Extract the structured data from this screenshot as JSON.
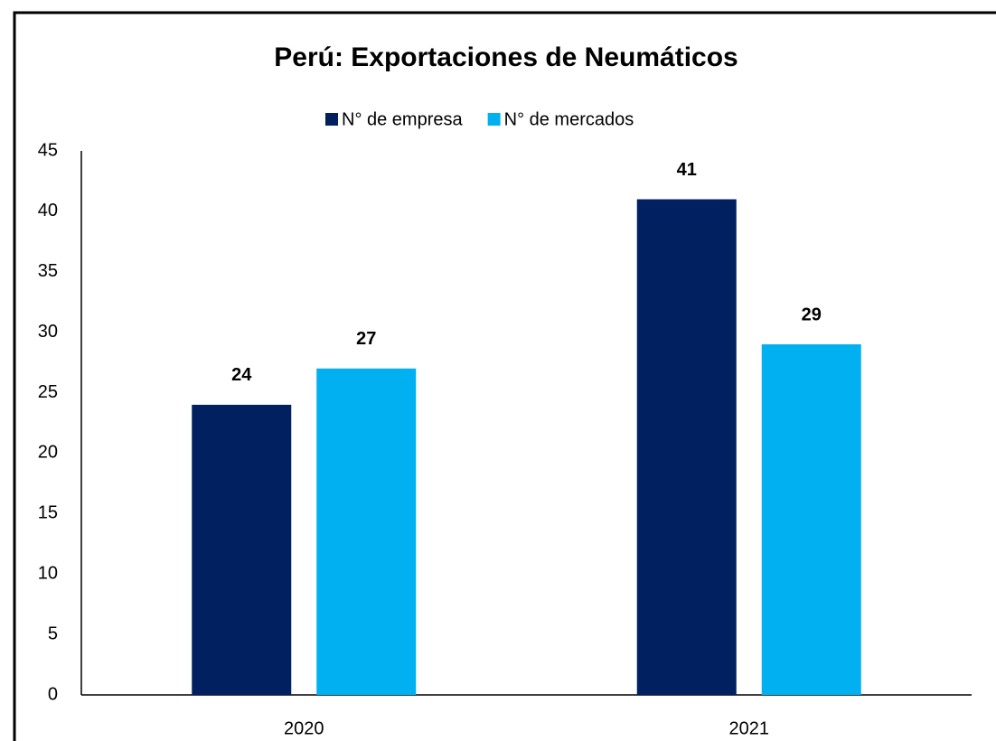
{
  "chart_data": {
    "type": "bar",
    "title": "Perú: Exportaciones de Neumáticos",
    "categories": [
      "2020",
      "2021"
    ],
    "series": [
      {
        "name": "N° de empresa",
        "color": "#002060",
        "values": [
          24,
          41
        ]
      },
      {
        "name": "N° de mercados",
        "color": "#00b0f0",
        "values": [
          27,
          29
        ]
      }
    ],
    "ylim": [
      0,
      45
    ],
    "yticks": [
      0,
      5,
      10,
      15,
      20,
      25,
      30,
      35,
      40,
      45
    ],
    "grid": false,
    "legend": "top"
  }
}
